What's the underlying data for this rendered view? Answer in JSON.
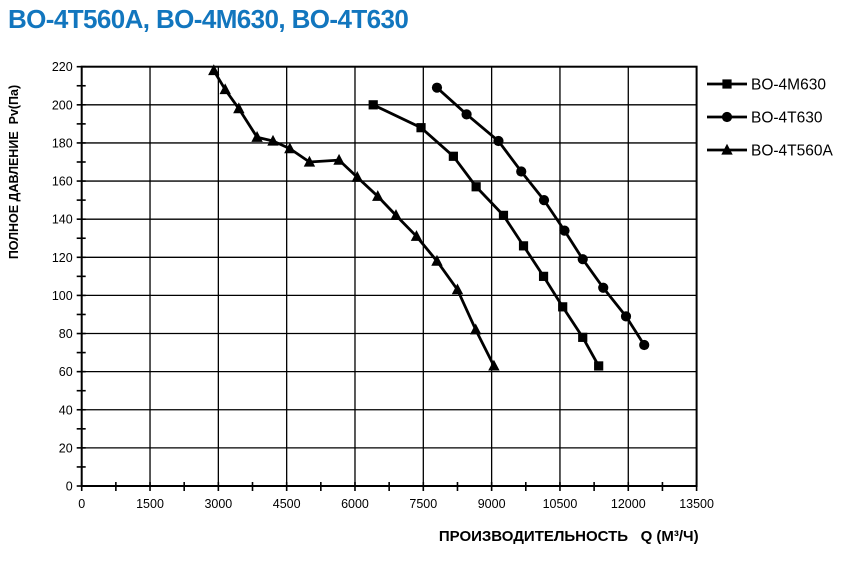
{
  "title": "BO-4T560A, BO-4M630, BO-4T630",
  "colors": {
    "title_blue": "#1276be",
    "line_color": "#000000",
    "grid_color": "#000000",
    "background": "#ffffff"
  },
  "chart_data": {
    "type": "line",
    "title": "BO-4T560A, BO-4M630, BO-4T630",
    "xlabel": "ПРОИЗВОДИТЕЛЬНОСТЬ   Q (М³/Ч)",
    "ylabel": "ПОЛНОЕ ДАВЛЕНИЕ  Pv(Па)",
    "xlim": [
      0,
      13500
    ],
    "ylim": [
      0,
      220
    ],
    "x_ticks": [
      0,
      1500,
      3000,
      4500,
      6000,
      7500,
      9000,
      10500,
      12000,
      13500
    ],
    "y_ticks": [
      0,
      20,
      40,
      60,
      80,
      100,
      120,
      140,
      160,
      180,
      200,
      220
    ],
    "x_tick_step": 1500,
    "x_minor_tick_step": 750,
    "y_tick_step": 20,
    "y_minor_tick_step": 10,
    "grid": true,
    "legend_position": "right",
    "series": [
      {
        "name": "BO-4M630",
        "marker": "square",
        "points": [
          [
            6400,
            200
          ],
          [
            7450,
            188
          ],
          [
            8160,
            173
          ],
          [
            8660,
            157
          ],
          [
            9260,
            142
          ],
          [
            9700,
            126
          ],
          [
            10140,
            110
          ],
          [
            10560,
            94
          ],
          [
            11000,
            78
          ],
          [
            11350,
            63
          ]
        ]
      },
      {
        "name": "BO-4T630",
        "marker": "circle",
        "points": [
          [
            7800,
            209
          ],
          [
            8450,
            195
          ],
          [
            9150,
            181
          ],
          [
            9650,
            165
          ],
          [
            10150,
            150
          ],
          [
            10600,
            134
          ],
          [
            11000,
            119
          ],
          [
            11450,
            104
          ],
          [
            11950,
            89
          ],
          [
            12350,
            74
          ]
        ]
      },
      {
        "name": "BO-4T560A",
        "marker": "triangle",
        "points": [
          [
            2900,
            218
          ],
          [
            3150,
            208
          ],
          [
            3450,
            198
          ],
          [
            3850,
            183
          ],
          [
            4200,
            181
          ],
          [
            4570,
            177
          ],
          [
            5000,
            170
          ],
          [
            5650,
            171
          ],
          [
            6050,
            162
          ],
          [
            6500,
            152
          ],
          [
            6900,
            142
          ],
          [
            7350,
            131
          ],
          [
            7800,
            118
          ],
          [
            8250,
            103
          ],
          [
            8650,
            82
          ],
          [
            9050,
            63
          ]
        ]
      }
    ]
  }
}
